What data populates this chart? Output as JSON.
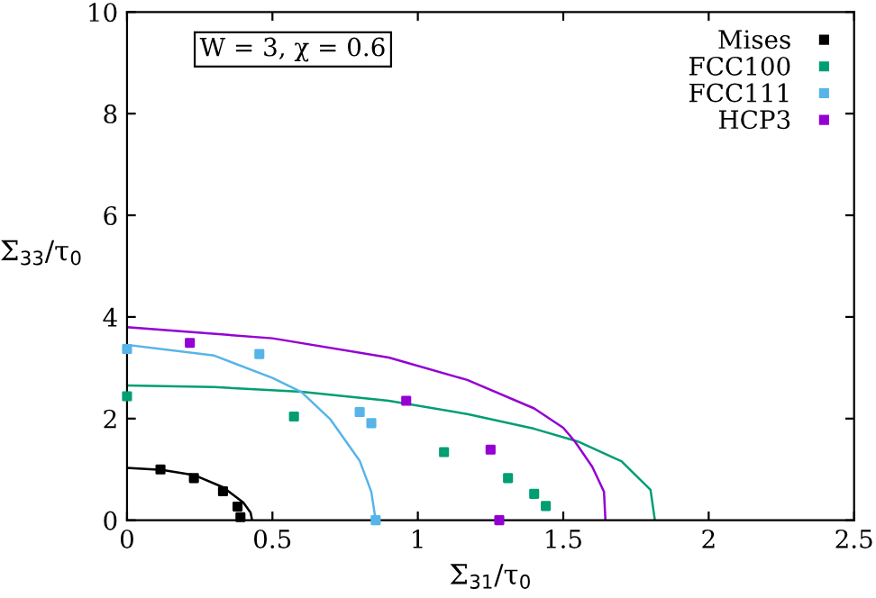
{
  "chart_data": {
    "type": "scatter",
    "xlabel": "Σ$_{31}$/τ$_{0}$",
    "ylabel": "Σ$_{33}$/τ$_{0}$",
    "xlim": [
      0,
      2.5
    ],
    "ylim": [
      0,
      10
    ],
    "xticks": [
      0,
      0.5,
      1,
      1.5,
      2,
      2.5
    ],
    "yticks": [
      0,
      2,
      4,
      6,
      8,
      10
    ],
    "grid": false,
    "legend": "top right",
    "marker": "square",
    "annotations": [
      "W = 3, χ = 0.6"
    ],
    "series": [
      {
        "name": "Mises",
        "color": "#000000",
        "x": [
          0.115,
          0.23,
          0.33,
          0.38,
          0.39
        ],
        "values": [
          1.0,
          0.83,
          0.57,
          0.27,
          0.06
        ]
      },
      {
        "name": "FCC100",
        "color": "#009e73",
        "x": [
          0,
          0.574,
          1.09,
          1.31,
          1.4,
          1.44
        ],
        "values": [
          2.44,
          2.04,
          1.34,
          0.83,
          0.52,
          0.28
        ]
      },
      {
        "name": "FCC111",
        "color": "#56b4e9",
        "x": [
          0,
          0.455,
          0.8,
          0.84,
          0.855
        ],
        "values": [
          3.37,
          3.27,
          2.13,
          1.91,
          0
        ]
      },
      {
        "name": "HCP3",
        "color": "#9400d3",
        "x": [
          0.216,
          0.96,
          1.25,
          1.28
        ],
        "values": [
          3.49,
          2.35,
          1.39,
          0
        ]
      },
      {
        "type": "line",
        "marker": "none",
        "color": "#000000",
        "x": [
          0,
          0.12,
          0.23,
          0.33,
          0.4,
          0.425,
          0.43
        ],
        "values": [
          1.03,
          0.99,
          0.89,
          0.65,
          0.35,
          0.15,
          0
        ]
      },
      {
        "type": "line",
        "marker": "none",
        "color": "#009e73",
        "x": [
          0,
          0.3,
          0.6,
          0.9,
          1.17,
          1.4,
          1.55,
          1.7,
          1.8,
          1.815
        ],
        "values": [
          2.65,
          2.62,
          2.53,
          2.35,
          2.09,
          1.8,
          1.55,
          1.16,
          0.6,
          0
        ]
      },
      {
        "type": "line",
        "marker": "none",
        "color": "#56b4e9",
        "x": [
          0,
          0.3,
          0.5,
          0.6,
          0.7,
          0.8,
          0.84,
          0.855
        ],
        "values": [
          3.45,
          3.24,
          2.8,
          2.52,
          1.98,
          1.17,
          0.56,
          0
        ]
      },
      {
        "type": "line",
        "marker": "none",
        "color": "#9400d3",
        "x": [
          0,
          0.5,
          0.9,
          1.17,
          1.4,
          1.5,
          1.54,
          1.6,
          1.64,
          1.645
        ],
        "values": [
          3.8,
          3.58,
          3.2,
          2.76,
          2.2,
          1.82,
          1.55,
          1.05,
          0.56,
          0
        ]
      }
    ]
  }
}
